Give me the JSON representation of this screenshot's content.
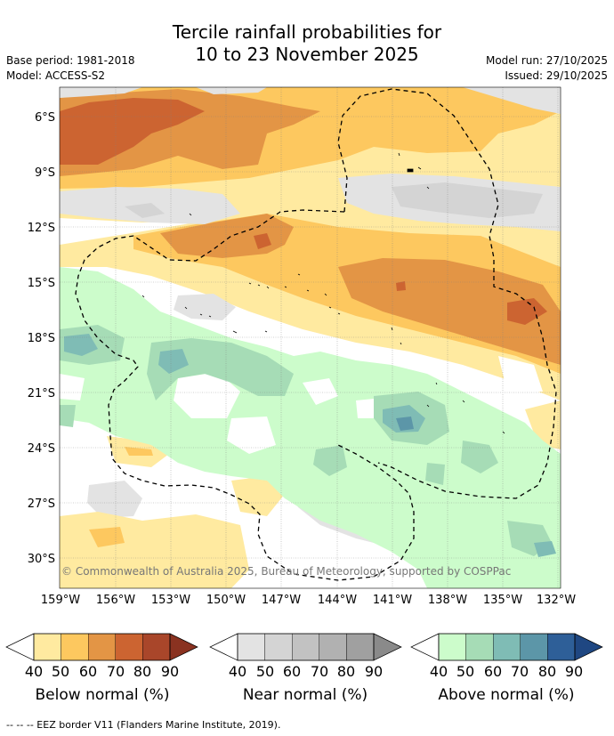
{
  "title": {
    "line1": "Tercile rainfall probabilities for",
    "line2": "10 to 23 November 2025"
  },
  "meta": {
    "base_period": "Base period: 1981-2018",
    "model": "Model: ACCESS-S2",
    "model_run": "Model run: 27/10/2025",
    "issued": "Issued: 29/10/2025"
  },
  "map": {
    "copyright": "© Commonwealth of Australia 2025, Bureau of Meteorology, supported by COSPPac",
    "lat_labels": [
      "6°S",
      "9°S",
      "12°S",
      "15°S",
      "18°S",
      "21°S",
      "24°S",
      "27°S",
      "30°S"
    ],
    "lon_labels": [
      "159°W",
      "156°W",
      "153°W",
      "150°W",
      "147°W",
      "144°W",
      "141°W",
      "138°W",
      "135°W",
      "132°W"
    ]
  },
  "legend": {
    "ticks": [
      "40",
      "50",
      "60",
      "70",
      "80",
      "90"
    ],
    "below": {
      "label": "Below normal (%)",
      "colors": [
        "#ffeaa0",
        "#fdc85f",
        "#e39545",
        "#cc6431",
        "#a9462a",
        "#8a3220"
      ]
    },
    "near": {
      "label": "Near normal (%)",
      "colors": [
        "#e3e3e3",
        "#d4d4d4",
        "#c2c2c2",
        "#b1b1b1",
        "#a0a0a0",
        "#8a8a8a"
      ]
    },
    "above": {
      "label": "Above normal (%)",
      "colors": [
        "#ccfccb",
        "#a6dcb6",
        "#7fbcb5",
        "#5c96a8",
        "#2e5f98",
        "#1f4782"
      ]
    }
  },
  "footer": "--  --  -- EEZ border V11 (Flanders Marine Institute, 2019)."
}
